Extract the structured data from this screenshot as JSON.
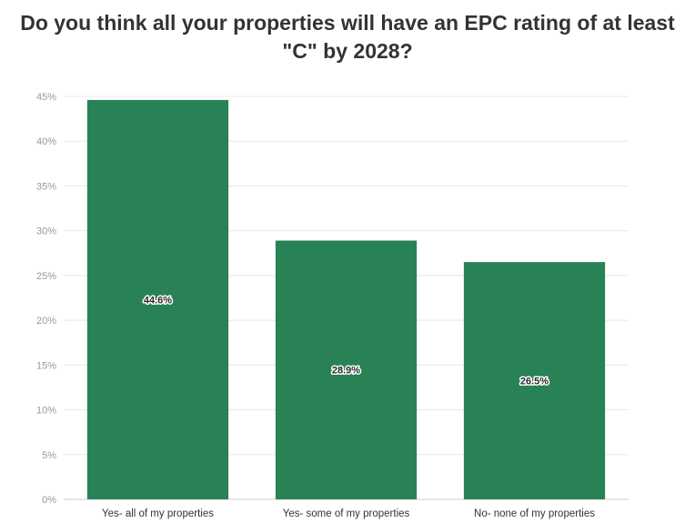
{
  "title_lines": [
    "Do you think all your properties will have an EPC rating of at least",
    "\"C\" by 2028?"
  ],
  "colors": {
    "bar": "#288256",
    "grid": "#e8e8e8",
    "axis": "#cccccc"
  },
  "chart_data": {
    "type": "bar",
    "title": "Do you think all your properties will have an EPC rating of at least \"C\" by 2028?",
    "categories": [
      "Yes- all of my properties",
      "Yes- some of my properties",
      "No- none of my properties"
    ],
    "values": [
      44.6,
      28.9,
      26.5
    ],
    "data_labels": [
      "44.6%",
      "28.9%",
      "26.5%"
    ],
    "ylim": [
      0,
      45
    ],
    "yticks": [
      0,
      5,
      10,
      15,
      20,
      25,
      30,
      35,
      40,
      45
    ],
    "ytick_labels": [
      "0%",
      "5%",
      "10%",
      "15%",
      "20%",
      "25%",
      "30%",
      "35%",
      "40%",
      "45%"
    ],
    "grid": true,
    "legend": "none"
  }
}
